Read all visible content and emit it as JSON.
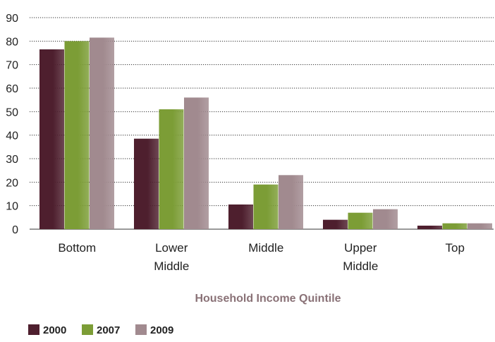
{
  "chart_data": {
    "type": "bar",
    "title": "",
    "xlabel": "Household Income Quintile",
    "ylabel": "",
    "ylim": [
      0,
      90
    ],
    "yticks": [
      0,
      10,
      20,
      30,
      40,
      50,
      60,
      70,
      80,
      90
    ],
    "categories": [
      "Bottom",
      "Lower Middle",
      "Middle",
      "Upper Middle",
      "Top"
    ],
    "category_lines": [
      [
        "Bottom"
      ],
      [
        "Lower",
        "Middle"
      ],
      [
        "Middle"
      ],
      [
        "Upper",
        "Middle"
      ],
      [
        "Top"
      ]
    ],
    "series": [
      {
        "name": "2000",
        "color": "#4e1f2e",
        "values": [
          76.5,
          38.5,
          10.5,
          4.0,
          1.5
        ]
      },
      {
        "name": "2007",
        "color": "#7c9d36",
        "values": [
          80,
          51,
          19,
          7,
          2.5
        ]
      },
      {
        "name": "2009",
        "color": "#a18a8f",
        "values": [
          81.5,
          56,
          23,
          8.5,
          2.5
        ]
      }
    ],
    "grid": true,
    "grid_style": "dotted horizontal",
    "legend_position": "bottom-left"
  }
}
